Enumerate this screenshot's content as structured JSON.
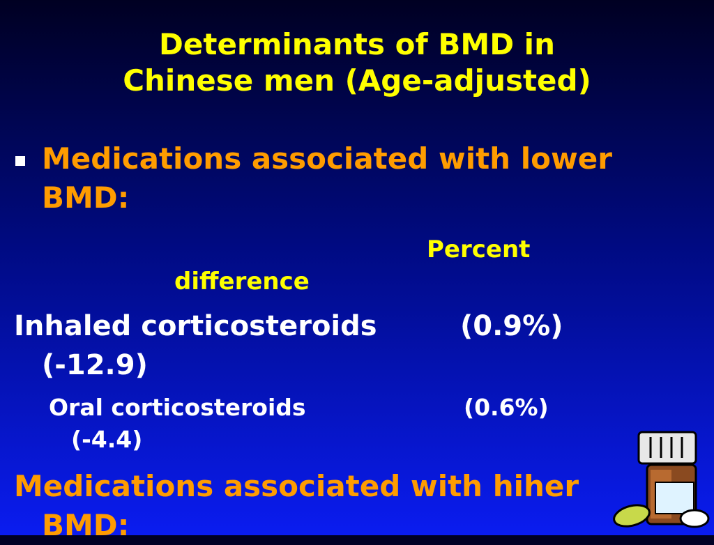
{
  "title": [
    "Determinants of BMD in",
    "Chinese men (Age-adjusted)"
  ],
  "lower_heading": "Medications associated with lower BMD:",
  "column_header": "Percent difference",
  "rows": [
    {
      "label": "Inhaled corticosteroids",
      "share": "(0.9%)",
      "difference": "(-12.9)"
    },
    {
      "label": "Oral corticosteroids",
      "share": "(0.6%)",
      "difference": "(-4.4)"
    }
  ],
  "higher_heading": "Medications associated with hiher BMD:"
}
